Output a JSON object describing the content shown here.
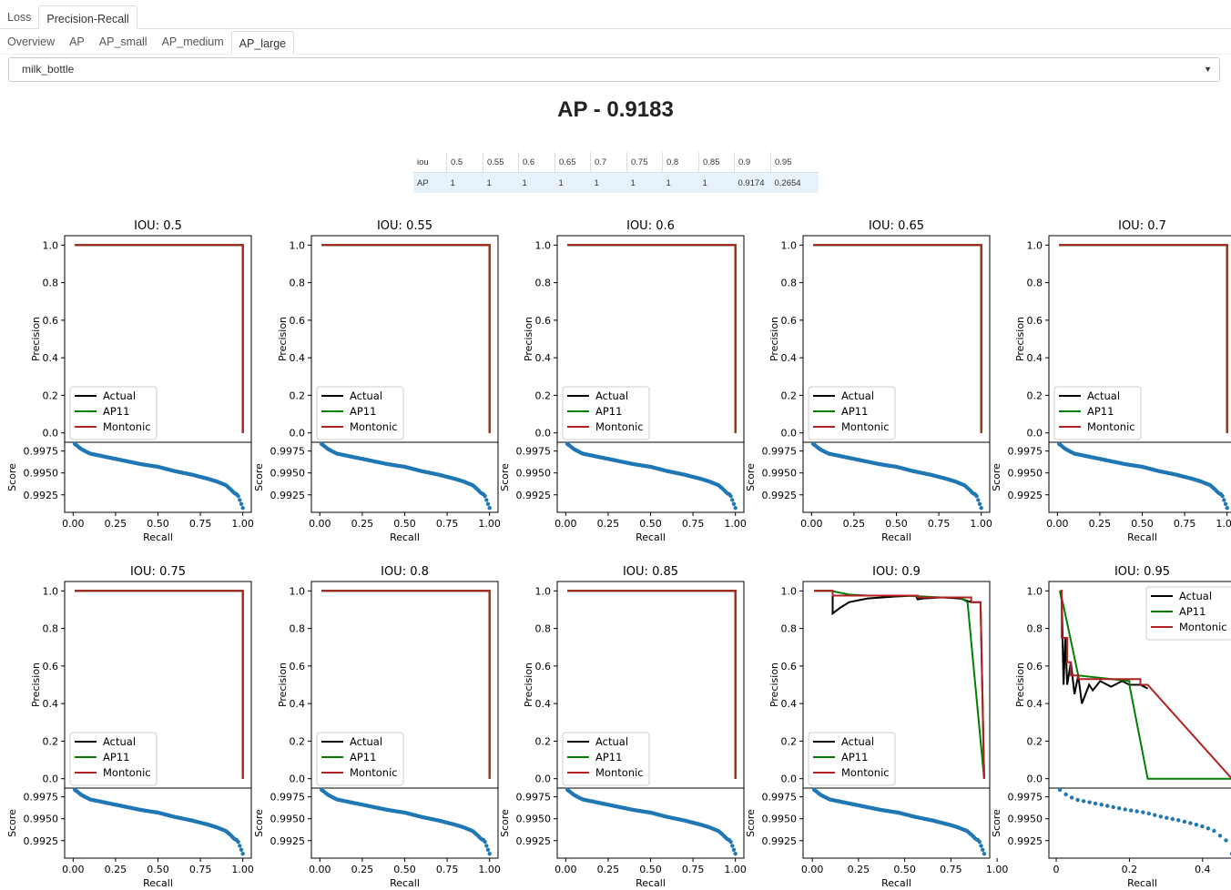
{
  "tabs": {
    "items": [
      "Loss",
      "Precision-Recall"
    ],
    "active": 1
  },
  "subtabs": {
    "items": [
      "Overview",
      "AP",
      "AP_small",
      "AP_medium",
      "AP_large"
    ],
    "active": 4
  },
  "class_select": {
    "value": "milk_bottle"
  },
  "ap_title": "AP - 0.9183",
  "ap_table": {
    "header_label": "iou",
    "row_label": "AP",
    "ious": [
      "0.5",
      "0.55",
      "0.6",
      "0.65",
      "0.7",
      "0.75",
      "0.8",
      "0.85",
      "0.9",
      "0.95"
    ],
    "values": [
      "1",
      "1",
      "1",
      "1",
      "1",
      "1",
      "1",
      "1",
      "0.9174",
      "0.2654"
    ]
  },
  "colors": {
    "actual": "#000000",
    "ap11": "#008000",
    "montonic": "#b22222",
    "score": "#1f77b4"
  },
  "chart_data": {
    "type": "line",
    "panel_titles": [
      "IOU: 0.5",
      "IOU: 0.55",
      "IOU: 0.6",
      "IOU: 0.65",
      "IOU: 0.7",
      "IOU: 0.75",
      "IOU: 0.8",
      "IOU: 0.85",
      "IOU: 0.9",
      "IOU: 0.95"
    ],
    "pr_ylabel": "Precision",
    "score_ylabel": "Score",
    "xlabel": "Recall",
    "legend": [
      "Actual",
      "AP11",
      "Montonic"
    ],
    "pr_ylim": [
      0,
      1
    ],
    "pr_yticks": [
      "0.0",
      "0.2",
      "0.4",
      "0.6",
      "0.8",
      "1.0"
    ],
    "score_yticks": [
      "0.9925",
      "0.9950",
      "0.9975"
    ],
    "xticks_standard": [
      "0.00",
      "0.25",
      "0.50",
      "0.75",
      "1.00"
    ],
    "xticks_095": [
      "0",
      "0.2",
      "0.4"
    ],
    "score_ylim": [
      0.9905,
      0.9985
    ],
    "score_series": {
      "recall": [
        0.01,
        0.03,
        0.05,
        0.1,
        0.2,
        0.3,
        0.4,
        0.5,
        0.6,
        0.7,
        0.8,
        0.85,
        0.9,
        0.93,
        0.95,
        0.97,
        0.98,
        0.99,
        1.0
      ],
      "score": [
        0.9983,
        0.998,
        0.9977,
        0.9972,
        0.9968,
        0.9964,
        0.996,
        0.9957,
        0.9952,
        0.9948,
        0.9943,
        0.994,
        0.9936,
        0.9931,
        0.9927,
        0.9925,
        0.992,
        0.9915,
        0.991
      ]
    },
    "panels": [
      {
        "iou": "0.5",
        "legend_pos": "lower-left",
        "xlim": [
          -0.05,
          1.05
        ],
        "actual": [
          [
            0.01,
            1
          ],
          [
            1,
            1
          ],
          [
            1,
            0
          ]
        ],
        "ap11": [
          [
            0.01,
            1
          ],
          [
            1,
            1
          ],
          [
            1,
            0
          ]
        ],
        "montonic": [
          [
            0.01,
            1
          ],
          [
            1,
            1
          ],
          [
            1,
            0
          ]
        ]
      },
      {
        "iou": "0.55",
        "legend_pos": "lower-left",
        "xlim": [
          -0.05,
          1.05
        ],
        "actual": [
          [
            0.01,
            1
          ],
          [
            1,
            1
          ],
          [
            1,
            0
          ]
        ],
        "ap11": [
          [
            0.01,
            1
          ],
          [
            1,
            1
          ],
          [
            1,
            0
          ]
        ],
        "montonic": [
          [
            0.01,
            1
          ],
          [
            1,
            1
          ],
          [
            1,
            0
          ]
        ]
      },
      {
        "iou": "0.6",
        "legend_pos": "lower-left",
        "xlim": [
          -0.05,
          1.05
        ],
        "actual": [
          [
            0.01,
            1
          ],
          [
            1,
            1
          ],
          [
            1,
            0
          ]
        ],
        "ap11": [
          [
            0.01,
            1
          ],
          [
            1,
            1
          ],
          [
            1,
            0
          ]
        ],
        "montonic": [
          [
            0.01,
            1
          ],
          [
            1,
            1
          ],
          [
            1,
            0
          ]
        ]
      },
      {
        "iou": "0.65",
        "legend_pos": "lower-left",
        "xlim": [
          -0.05,
          1.05
        ],
        "actual": [
          [
            0.01,
            1
          ],
          [
            1,
            1
          ],
          [
            1,
            0
          ]
        ],
        "ap11": [
          [
            0.01,
            1
          ],
          [
            1,
            1
          ],
          [
            1,
            0
          ]
        ],
        "montonic": [
          [
            0.01,
            1
          ],
          [
            1,
            1
          ],
          [
            1,
            0
          ]
        ]
      },
      {
        "iou": "0.7",
        "legend_pos": "lower-left",
        "xlim": [
          -0.05,
          1.05
        ],
        "actual": [
          [
            0.01,
            1
          ],
          [
            1,
            1
          ],
          [
            1,
            0
          ]
        ],
        "ap11": [
          [
            0.01,
            1
          ],
          [
            1,
            1
          ],
          [
            1,
            0
          ]
        ],
        "montonic": [
          [
            0.01,
            1
          ],
          [
            1,
            1
          ],
          [
            1,
            0
          ]
        ]
      },
      {
        "iou": "0.75",
        "legend_pos": "lower-left",
        "xlim": [
          -0.05,
          1.05
        ],
        "actual": [
          [
            0.01,
            1
          ],
          [
            1,
            1
          ],
          [
            1,
            0
          ]
        ],
        "ap11": [
          [
            0.01,
            1
          ],
          [
            1,
            1
          ],
          [
            1,
            0
          ]
        ],
        "montonic": [
          [
            0.01,
            1
          ],
          [
            1,
            1
          ],
          [
            1,
            0
          ]
        ]
      },
      {
        "iou": "0.8",
        "legend_pos": "lower-left",
        "xlim": [
          -0.05,
          1.05
        ],
        "actual": [
          [
            0.01,
            1
          ],
          [
            1,
            1
          ],
          [
            1,
            0
          ]
        ],
        "ap11": [
          [
            0.01,
            1
          ],
          [
            1,
            1
          ],
          [
            1,
            0
          ]
        ],
        "montonic": [
          [
            0.01,
            1
          ],
          [
            1,
            1
          ],
          [
            1,
            0
          ]
        ]
      },
      {
        "iou": "0.85",
        "legend_pos": "lower-left",
        "xlim": [
          -0.05,
          1.05
        ],
        "actual": [
          [
            0.01,
            1
          ],
          [
            1,
            1
          ],
          [
            1,
            0
          ]
        ],
        "ap11": [
          [
            0.01,
            1
          ],
          [
            1,
            1
          ],
          [
            1,
            0
          ]
        ],
        "montonic": [
          [
            0.01,
            1
          ],
          [
            1,
            1
          ],
          [
            1,
            0
          ]
        ]
      },
      {
        "iou": "0.9",
        "legend_pos": "lower-left",
        "xlim": [
          -0.05,
          0.96
        ],
        "actual": [
          [
            0.01,
            1
          ],
          [
            0.11,
            1
          ],
          [
            0.11,
            0.88
          ],
          [
            0.15,
            0.91
          ],
          [
            0.2,
            0.94
          ],
          [
            0.3,
            0.96
          ],
          [
            0.45,
            0.97
          ],
          [
            0.56,
            0.975
          ],
          [
            0.57,
            0.955
          ],
          [
            0.6,
            0.96
          ],
          [
            0.7,
            0.965
          ],
          [
            0.8,
            0.96
          ],
          [
            0.86,
            0.94
          ],
          [
            0.91,
            0.94
          ],
          [
            0.93,
            0
          ]
        ],
        "ap11": [
          [
            0.01,
            1
          ],
          [
            0.1,
            1
          ],
          [
            0.2,
            0.98
          ],
          [
            0.3,
            0.975
          ],
          [
            0.4,
            0.975
          ],
          [
            0.5,
            0.975
          ],
          [
            0.6,
            0.97
          ],
          [
            0.7,
            0.965
          ],
          [
            0.8,
            0.965
          ],
          [
            0.84,
            0.94
          ],
          [
            0.93,
            0
          ]
        ],
        "montonic": [
          [
            0.01,
            1
          ],
          [
            0.11,
            1
          ],
          [
            0.11,
            0.975
          ],
          [
            0.57,
            0.975
          ],
          [
            0.57,
            0.965
          ],
          [
            0.86,
            0.965
          ],
          [
            0.86,
            0.94
          ],
          [
            0.91,
            0.94
          ],
          [
            0.93,
            0
          ]
        ]
      },
      {
        "iou": "0.95",
        "legend_pos": "upper-right",
        "xlim": [
          -0.02,
          0.49
        ],
        "actual": [
          [
            0.01,
            1
          ],
          [
            0.015,
            0.95
          ],
          [
            0.02,
            0.5
          ],
          [
            0.025,
            0.75
          ],
          [
            0.03,
            0.5
          ],
          [
            0.04,
            0.62
          ],
          [
            0.05,
            0.45
          ],
          [
            0.06,
            0.55
          ],
          [
            0.07,
            0.4
          ],
          [
            0.09,
            0.5
          ],
          [
            0.1,
            0.47
          ],
          [
            0.12,
            0.52
          ],
          [
            0.15,
            0.49
          ],
          [
            0.18,
            0.52
          ],
          [
            0.2,
            0.5
          ],
          [
            0.23,
            0.5
          ],
          [
            0.25,
            0.48
          ]
        ],
        "ap11": [
          [
            0.01,
            1
          ],
          [
            0.02,
            0.92
          ],
          [
            0.06,
            0.55
          ],
          [
            0.2,
            0.52
          ],
          [
            0.2,
            0.5
          ],
          [
            0.25,
            0
          ],
          [
            0.48,
            0
          ]
        ],
        "montonic": [
          [
            0.01,
            1
          ],
          [
            0.015,
            1
          ],
          [
            0.015,
            0.75
          ],
          [
            0.03,
            0.75
          ],
          [
            0.03,
            0.62
          ],
          [
            0.04,
            0.62
          ],
          [
            0.04,
            0.55
          ],
          [
            0.06,
            0.55
          ],
          [
            0.06,
            0.53
          ],
          [
            0.23,
            0.53
          ],
          [
            0.23,
            0.5
          ],
          [
            0.25,
            0.5
          ],
          [
            0.48,
            0
          ]
        ]
      }
    ]
  }
}
